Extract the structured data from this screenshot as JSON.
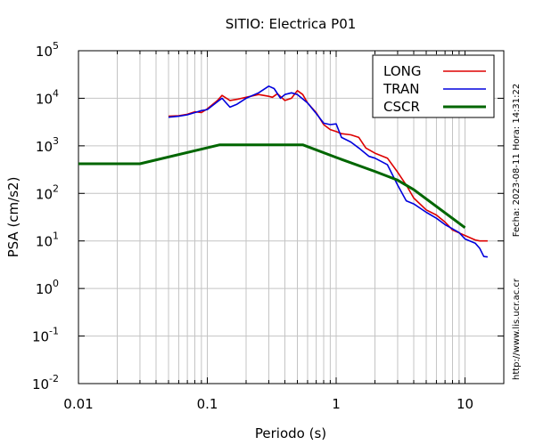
{
  "chart_data": {
    "type": "line",
    "title": "SITIO: Electrica P01",
    "xlabel": "Periodo (s)",
    "ylabel": "PSA (cm/s2)",
    "x_scale": "log",
    "y_scale": "log",
    "xlim": [
      0.01,
      20
    ],
    "ylim": [
      0.01,
      100000
    ],
    "x_ticks": [
      {
        "value": 0.01,
        "label": "0.01"
      },
      {
        "value": 0.1,
        "label": "0.1"
      },
      {
        "value": 1,
        "label": "1"
      },
      {
        "value": 10,
        "label": "10"
      }
    ],
    "y_ticks": [
      {
        "value": 0.01,
        "base": "10",
        "exp": "-2"
      },
      {
        "value": 0.1,
        "base": "10",
        "exp": "-1"
      },
      {
        "value": 1,
        "base": "10",
        "exp": "0"
      },
      {
        "value": 10,
        "base": "10",
        "exp": "1"
      },
      {
        "value": 100,
        "base": "10",
        "exp": "2"
      },
      {
        "value": 1000,
        "base": "10",
        "exp": "3"
      },
      {
        "value": 10000,
        "base": "10",
        "exp": "4"
      },
      {
        "value": 100000,
        "base": "10",
        "exp": "5"
      }
    ],
    "grid": true,
    "legend_position": "top-right",
    "side_note": "Fecha: 2023-08-11  Hora: 14:31:22",
    "url_note": "http://www.lis.ucr.ac.cr",
    "series": [
      {
        "name": "LONG",
        "color": "#dd0000",
        "points": [
          [
            0.05,
            4200
          ],
          [
            0.06,
            4300
          ],
          [
            0.07,
            4600
          ],
          [
            0.08,
            5200
          ],
          [
            0.09,
            5000
          ],
          [
            0.1,
            6000
          ],
          [
            0.12,
            9000
          ],
          [
            0.13,
            11500
          ],
          [
            0.15,
            9000
          ],
          [
            0.17,
            9500
          ],
          [
            0.2,
            10500
          ],
          [
            0.25,
            12000
          ],
          [
            0.3,
            11000
          ],
          [
            0.32,
            10500
          ],
          [
            0.35,
            12500
          ],
          [
            0.4,
            9000
          ],
          [
            0.45,
            10000
          ],
          [
            0.5,
            14500
          ],
          [
            0.55,
            12000
          ],
          [
            0.6,
            8000
          ],
          [
            0.7,
            5000
          ],
          [
            0.8,
            2800
          ],
          [
            0.9,
            2200
          ],
          [
            1.0,
            2000
          ],
          [
            1.1,
            1800
          ],
          [
            1.3,
            1700
          ],
          [
            1.5,
            1500
          ],
          [
            1.7,
            900
          ],
          [
            2.0,
            700
          ],
          [
            2.5,
            550
          ],
          [
            3.0,
            280
          ],
          [
            3.5,
            150
          ],
          [
            4.0,
            80
          ],
          [
            5.0,
            45
          ],
          [
            6.0,
            35
          ],
          [
            7.0,
            25
          ],
          [
            8.0,
            17
          ],
          [
            10.0,
            13
          ],
          [
            12.0,
            10.5
          ],
          [
            13.0,
            10
          ],
          [
            14.0,
            10
          ],
          [
            15.0,
            10
          ]
        ]
      },
      {
        "name": "TRAN",
        "color": "#0000dd",
        "points": [
          [
            0.05,
            4000
          ],
          [
            0.06,
            4200
          ],
          [
            0.07,
            4500
          ],
          [
            0.08,
            5000
          ],
          [
            0.09,
            5500
          ],
          [
            0.1,
            5800
          ],
          [
            0.12,
            8500
          ],
          [
            0.13,
            10000
          ],
          [
            0.15,
            6500
          ],
          [
            0.17,
            7500
          ],
          [
            0.2,
            10000
          ],
          [
            0.25,
            13000
          ],
          [
            0.3,
            18000
          ],
          [
            0.33,
            16000
          ],
          [
            0.37,
            10000
          ],
          [
            0.4,
            12000
          ],
          [
            0.45,
            13000
          ],
          [
            0.5,
            12000
          ],
          [
            0.6,
            8000
          ],
          [
            0.7,
            4800
          ],
          [
            0.8,
            3000
          ],
          [
            0.9,
            2800
          ],
          [
            1.0,
            2900
          ],
          [
            1.1,
            1500
          ],
          [
            1.3,
            1200
          ],
          [
            1.5,
            900
          ],
          [
            1.8,
            600
          ],
          [
            2.0,
            550
          ],
          [
            2.5,
            400
          ],
          [
            3.0,
            150
          ],
          [
            3.5,
            70
          ],
          [
            4.0,
            60
          ],
          [
            5.0,
            40
          ],
          [
            6.0,
            30
          ],
          [
            7.0,
            22
          ],
          [
            8.0,
            18
          ],
          [
            9.0,
            15
          ],
          [
            10.0,
            11
          ],
          [
            12.0,
            9
          ],
          [
            13.0,
            7
          ],
          [
            14.0,
            4.7
          ],
          [
            15.0,
            4.6
          ]
        ]
      },
      {
        "name": "CSCR",
        "color": "#006600",
        "points": [
          [
            0.01,
            420
          ],
          [
            0.03,
            420
          ],
          [
            0.125,
            1050
          ],
          [
            0.55,
            1050
          ],
          [
            1.0,
            570
          ],
          [
            2.0,
            290
          ],
          [
            3.0,
            190
          ],
          [
            4.0,
            120
          ],
          [
            10.0,
            19
          ]
        ]
      }
    ]
  }
}
